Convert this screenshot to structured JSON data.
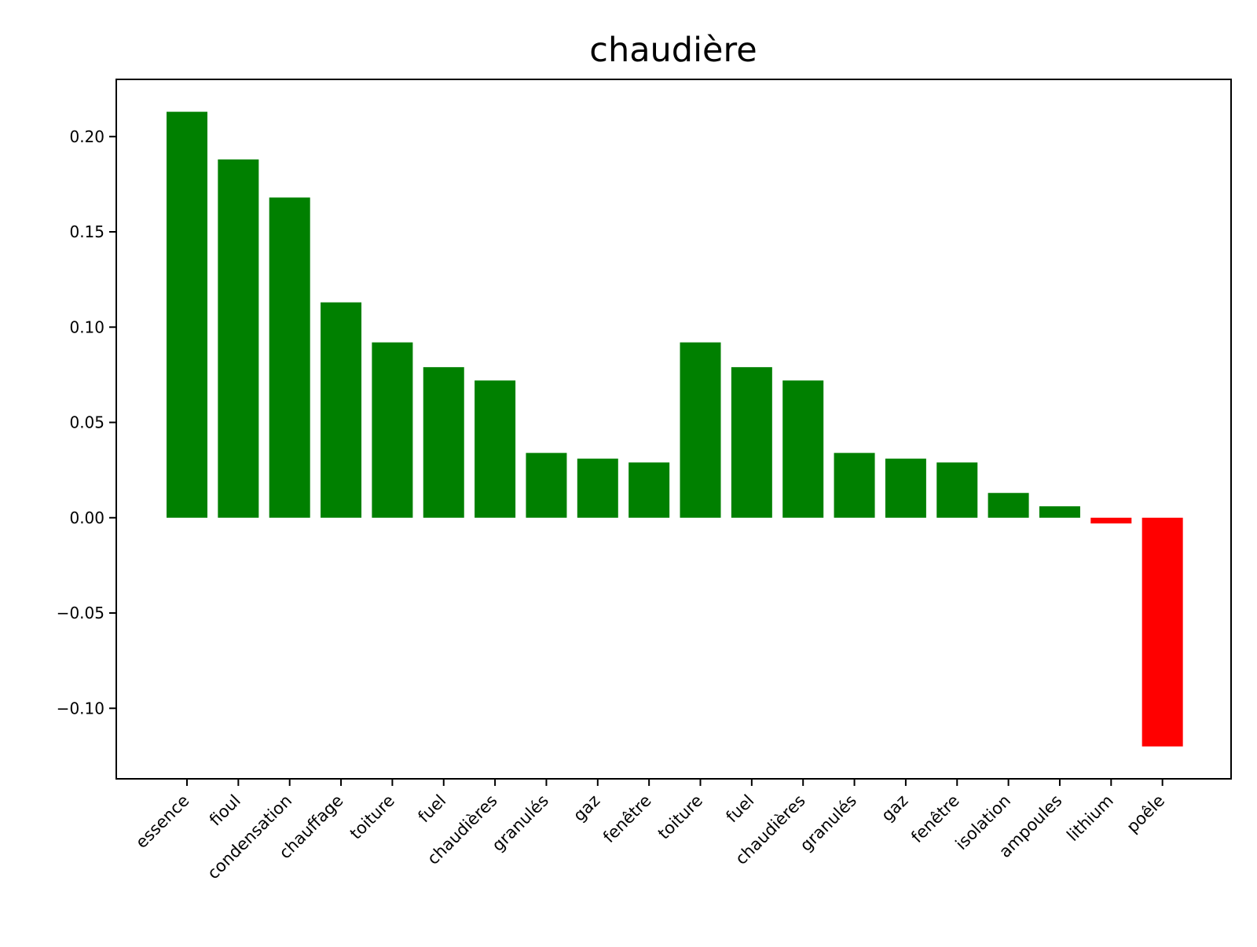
{
  "chart_data": {
    "type": "bar",
    "title": "chaudière",
    "xlabel": "",
    "ylabel": "",
    "categories": [
      "essence",
      "fioul",
      "condensation",
      "chauffage",
      "toiture",
      "fuel",
      "chaudières",
      "granulés",
      "gaz",
      "fenêtre",
      "toiture",
      "fuel",
      "chaudières",
      "granulés",
      "gaz",
      "fenêtre",
      "isolation",
      "ampoules",
      "lithium",
      "poêle"
    ],
    "values": [
      0.213,
      0.188,
      0.168,
      0.113,
      0.092,
      0.079,
      0.072,
      0.034,
      0.031,
      0.029,
      0.092,
      0.079,
      0.072,
      0.034,
      0.031,
      0.029,
      0.013,
      0.006,
      -0.003,
      -0.12
    ],
    "ylim": [
      -0.137,
      0.23
    ],
    "yticks": [
      -0.1,
      -0.05,
      0.0,
      0.05,
      0.1,
      0.15,
      0.2
    ],
    "ytick_labels": [
      "−0.10",
      "−0.05",
      "0.00",
      "0.05",
      "0.10",
      "0.15",
      "0.20"
    ],
    "grid": false,
    "legend": "none",
    "colors": {
      "positive": "#008000",
      "negative": "#ff0000",
      "axes": "#000000"
    }
  }
}
